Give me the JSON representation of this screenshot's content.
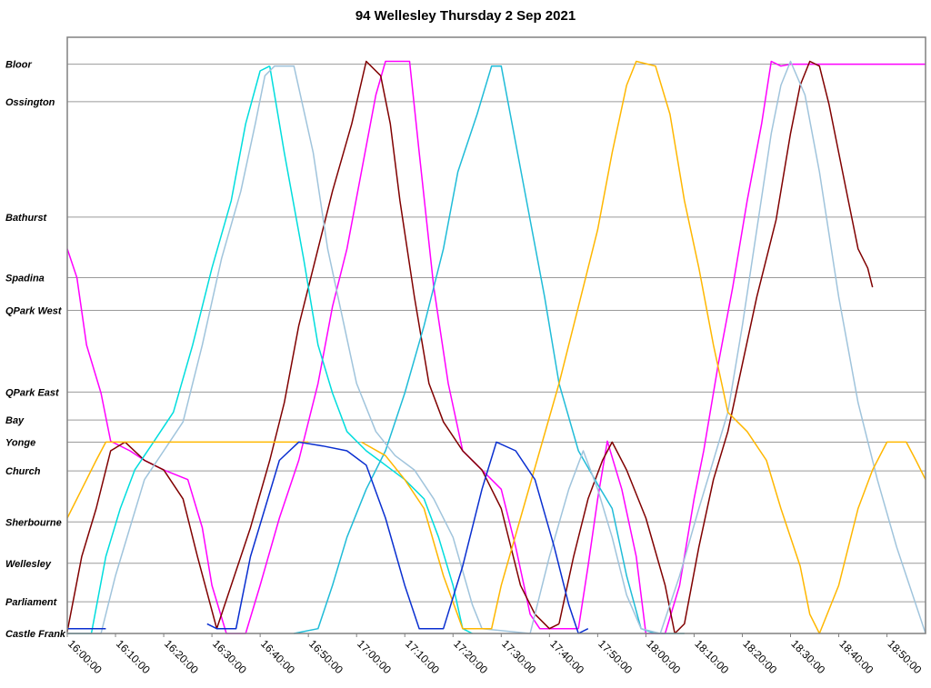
{
  "chart_data": {
    "type": "line",
    "title": "94 Wellesley Thursday 2 Sep 2021",
    "xlabel": "",
    "ylabel": "",
    "x_axis": {
      "type": "time",
      "range": [
        "16:00:00",
        "18:58:00"
      ],
      "ticks": [
        "16:00:00",
        "16:10:00",
        "16:20:00",
        "16:30:00",
        "16:40:00",
        "16:50:00",
        "17:00:00",
        "17:10:00",
        "17:20:00",
        "17:30:00",
        "17:40:00",
        "17:50:00",
        "18:00:00",
        "18:10:00",
        "18:20:00",
        "18:30:00",
        "18:40:00",
        "18:50:00"
      ]
    },
    "y_axis": {
      "type": "distance_km_from_castle_frank",
      "range": [
        0,
        6.2
      ],
      "stops": [
        {
          "name": "Castle Frank",
          "pos": 0.0
        },
        {
          "name": "Parliament",
          "pos": 0.33
        },
        {
          "name": "Wellesley",
          "pos": 0.73
        },
        {
          "name": "Sherbourne",
          "pos": 1.16
        },
        {
          "name": "Church",
          "pos": 1.69
        },
        {
          "name": "Yonge",
          "pos": 1.99
        },
        {
          "name": "Bay",
          "pos": 2.22
        },
        {
          "name": "QPark East",
          "pos": 2.51
        },
        {
          "name": "QPark West",
          "pos": 3.36
        },
        {
          "name": "Spadina",
          "pos": 3.7
        },
        {
          "name": "Bathurst",
          "pos": 4.33
        },
        {
          "name": "Ossington",
          "pos": 5.53
        },
        {
          "name": "Bloor",
          "pos": 5.92
        }
      ]
    },
    "grid": true,
    "legend": "none",
    "series": [
      {
        "color": "#ff00ff",
        "points": [
          [
            0,
            4.0
          ],
          [
            2,
            3.7
          ],
          [
            4,
            3.0
          ],
          [
            7,
            2.5
          ],
          [
            9,
            2.0
          ],
          [
            13,
            1.9
          ],
          [
            16,
            1.8
          ],
          [
            20,
            1.7
          ],
          [
            25,
            1.6
          ],
          [
            28,
            1.1
          ],
          [
            30,
            0.5
          ],
          [
            33,
            0.0
          ],
          [
            37,
            0.0
          ]
        ]
      },
      {
        "color": "#ff00ff",
        "points": [
          [
            37,
            0.0
          ],
          [
            40,
            0.5
          ],
          [
            44,
            1.2
          ],
          [
            48,
            1.8
          ],
          [
            52,
            2.6
          ],
          [
            55,
            3.4
          ],
          [
            58,
            4.0
          ],
          [
            61,
            4.8
          ],
          [
            64,
            5.6
          ],
          [
            66,
            5.95
          ],
          [
            71,
            5.95
          ],
          [
            73,
            5.0
          ],
          [
            76,
            3.6
          ],
          [
            79,
            2.6
          ],
          [
            82,
            1.9
          ],
          [
            86,
            1.7
          ],
          [
            90,
            1.5
          ],
          [
            93,
            0.9
          ],
          [
            96,
            0.2
          ],
          [
            98,
            0.05
          ],
          [
            106,
            0.05
          ]
        ]
      },
      {
        "color": "#ff00ff",
        "points": [
          [
            106,
            0.05
          ],
          [
            108,
            0.7
          ],
          [
            110,
            1.4
          ],
          [
            112,
            2.0
          ],
          [
            115,
            1.5
          ],
          [
            118,
            0.8
          ],
          [
            120,
            0.0
          ],
          [
            124,
            0.0
          ],
          [
            127,
            0.5
          ],
          [
            130,
            1.4
          ],
          [
            132,
            1.9
          ],
          [
            135,
            2.8
          ],
          [
            138,
            3.6
          ],
          [
            141,
            4.5
          ],
          [
            144,
            5.3
          ],
          [
            146,
            5.95
          ],
          [
            148,
            5.9
          ],
          [
            150,
            5.92
          ],
          [
            178,
            5.92
          ]
        ]
      },
      {
        "color": "#800000",
        "points": [
          [
            0,
            0.02
          ],
          [
            3,
            0.8
          ],
          [
            6,
            1.3
          ],
          [
            9,
            1.9
          ],
          [
            12,
            1.99
          ],
          [
            16,
            1.8
          ],
          [
            20,
            1.7
          ],
          [
            24,
            1.4
          ],
          [
            27,
            0.8
          ],
          [
            31,
            0.05
          ],
          [
            34,
            0.5
          ],
          [
            38,
            1.1
          ],
          [
            42,
            1.8
          ],
          [
            45,
            2.4
          ],
          [
            48,
            3.2
          ],
          [
            51,
            3.8
          ],
          [
            55,
            4.6
          ],
          [
            59,
            5.3
          ],
          [
            62,
            5.95
          ],
          [
            65,
            5.8
          ],
          [
            67,
            5.3
          ],
          [
            69,
            4.5
          ],
          [
            72,
            3.5
          ],
          [
            75,
            2.6
          ],
          [
            78,
            2.2
          ],
          [
            82,
            1.9
          ],
          [
            86,
            1.7
          ],
          [
            90,
            1.3
          ],
          [
            94,
            0.5
          ],
          [
            97,
            0.2
          ],
          [
            100,
            0.05
          ],
          [
            102,
            0.1
          ]
        ]
      },
      {
        "color": "#800000",
        "points": [
          [
            102,
            0.1
          ],
          [
            105,
            0.8
          ],
          [
            108,
            1.4
          ],
          [
            111,
            1.8
          ],
          [
            113,
            1.99
          ],
          [
            116,
            1.7
          ],
          [
            120,
            1.2
          ],
          [
            124,
            0.5
          ],
          [
            126,
            0.0
          ],
          [
            128,
            0.1
          ],
          [
            131,
            0.9
          ],
          [
            134,
            1.6
          ],
          [
            137,
            2.1
          ],
          [
            140,
            2.8
          ],
          [
            143,
            3.5
          ],
          [
            147,
            4.3
          ],
          [
            150,
            5.2
          ],
          [
            152,
            5.7
          ],
          [
            154,
            5.95
          ],
          [
            156,
            5.9
          ],
          [
            158,
            5.5
          ],
          [
            160,
            5.0
          ],
          [
            162,
            4.5
          ],
          [
            164,
            4.0
          ],
          [
            166,
            3.8
          ],
          [
            167,
            3.6
          ]
        ]
      },
      {
        "color": "#00dddd",
        "points": [
          [
            0,
            0.0
          ],
          [
            5,
            0.0
          ],
          [
            8,
            0.8
          ],
          [
            11,
            1.3
          ],
          [
            14,
            1.7
          ],
          [
            18,
            2.0
          ],
          [
            22,
            2.3
          ],
          [
            26,
            3.0
          ],
          [
            30,
            3.8
          ],
          [
            34,
            4.5
          ],
          [
            37,
            5.3
          ],
          [
            40,
            5.85
          ],
          [
            42,
            5.9
          ]
        ]
      },
      {
        "color": "#00dddd",
        "points": [
          [
            42,
            5.9
          ],
          [
            45,
            5.0
          ],
          [
            49,
            3.9
          ],
          [
            52,
            3.0
          ],
          [
            55,
            2.5
          ],
          [
            58,
            2.1
          ],
          [
            62,
            1.9
          ],
          [
            66,
            1.75
          ],
          [
            70,
            1.6
          ],
          [
            74,
            1.4
          ],
          [
            77,
            1.0
          ],
          [
            80,
            0.5
          ],
          [
            82,
            0.05
          ],
          [
            84,
            0.0
          ]
        ]
      },
      {
        "color": "#20bcd8",
        "points": [
          [
            47,
            0.0
          ],
          [
            52,
            0.05
          ],
          [
            55,
            0.5
          ],
          [
            58,
            1.0
          ],
          [
            62,
            1.5
          ],
          [
            66,
            1.9
          ],
          [
            70,
            2.5
          ],
          [
            74,
            3.2
          ],
          [
            78,
            4.0
          ],
          [
            81,
            4.8
          ],
          [
            85,
            5.4
          ],
          [
            88,
            5.9
          ],
          [
            90,
            5.9
          ],
          [
            93,
            5.1
          ],
          [
            96,
            4.3
          ],
          [
            99,
            3.5
          ],
          [
            102,
            2.6
          ],
          [
            106,
            1.9
          ],
          [
            110,
            1.55
          ],
          [
            113,
            1.3
          ],
          [
            116,
            0.6
          ],
          [
            119,
            0.05
          ],
          [
            122,
            0.0
          ],
          [
            128,
            0.0
          ]
        ]
      },
      {
        "color": "#a0c4dc",
        "points": [
          [
            0,
            0.0
          ],
          [
            7,
            0.0
          ],
          [
            10,
            0.6
          ],
          [
            13,
            1.1
          ],
          [
            16,
            1.6
          ],
          [
            20,
            1.9
          ],
          [
            24,
            2.2
          ],
          [
            28,
            3.0
          ],
          [
            32,
            3.9
          ],
          [
            36,
            4.6
          ],
          [
            39,
            5.3
          ],
          [
            41,
            5.8
          ],
          [
            43,
            5.9
          ],
          [
            47,
            5.9
          ],
          [
            51,
            5.0
          ],
          [
            54,
            4.0
          ],
          [
            57,
            3.3
          ],
          [
            60,
            2.6
          ],
          [
            64,
            2.1
          ],
          [
            68,
            1.85
          ],
          [
            72,
            1.7
          ],
          [
            76,
            1.4
          ],
          [
            80,
            1.0
          ],
          [
            84,
            0.3
          ],
          [
            86,
            0.05
          ],
          [
            96,
            0.0
          ]
        ]
      },
      {
        "color": "#a0c4dc",
        "points": [
          [
            96,
            0.0
          ],
          [
            100,
            0.8
          ],
          [
            104,
            1.5
          ],
          [
            107,
            1.9
          ],
          [
            110,
            1.5
          ],
          [
            113,
            1.0
          ],
          [
            116,
            0.4
          ],
          [
            119,
            0.05
          ],
          [
            123,
            0.0
          ],
          [
            127,
            0.6
          ],
          [
            131,
            1.3
          ],
          [
            134,
            1.8
          ],
          [
            137,
            2.3
          ],
          [
            140,
            3.2
          ],
          [
            143,
            4.2
          ],
          [
            146,
            5.2
          ],
          [
            148,
            5.7
          ],
          [
            150,
            5.95
          ],
          [
            153,
            5.6
          ],
          [
            156,
            4.8
          ],
          [
            160,
            3.5
          ],
          [
            164,
            2.4
          ],
          [
            168,
            1.6
          ],
          [
            172,
            0.9
          ],
          [
            176,
            0.3
          ],
          [
            178,
            0.0
          ]
        ]
      },
      {
        "color": "#ffb700",
        "points": [
          [
            0,
            1.2
          ],
          [
            3,
            1.5
          ],
          [
            6,
            1.8
          ],
          [
            8,
            1.99
          ],
          [
            47,
            1.99
          ],
          [
            50,
            1.99
          ]
        ]
      },
      {
        "color": "#ffb700",
        "points": [
          [
            61,
            1.99
          ],
          [
            66,
            1.85
          ],
          [
            70,
            1.6
          ],
          [
            74,
            1.3
          ],
          [
            78,
            0.6
          ],
          [
            82,
            0.05
          ],
          [
            88,
            0.05
          ],
          [
            90,
            0.5
          ],
          [
            94,
            1.2
          ],
          [
            98,
            1.9
          ],
          [
            102,
            2.6
          ],
          [
            106,
            3.4
          ],
          [
            110,
            4.2
          ],
          [
            113,
            5.0
          ],
          [
            116,
            5.7
          ],
          [
            118,
            5.95
          ],
          [
            122,
            5.9
          ],
          [
            125,
            5.4
          ],
          [
            128,
            4.5
          ],
          [
            131,
            3.8
          ],
          [
            134,
            3.0
          ],
          [
            137,
            2.3
          ],
          [
            141,
            2.1
          ],
          [
            145,
            1.8
          ],
          [
            148,
            1.3
          ],
          [
            152,
            0.7
          ],
          [
            154,
            0.2
          ],
          [
            156,
            0.0
          ],
          [
            160,
            0.5
          ],
          [
            164,
            1.3
          ],
          [
            167,
            1.7
          ],
          [
            170,
            1.99
          ],
          [
            174,
            1.99
          ],
          [
            176,
            1.8
          ],
          [
            178,
            1.6
          ]
        ]
      },
      {
        "color": "#0a2fd0",
        "points": [
          [
            0,
            0.05
          ],
          [
            8,
            0.05
          ]
        ]
      },
      {
        "color": "#0a2fd0",
        "points": [
          [
            29,
            0.1
          ],
          [
            31,
            0.05
          ],
          [
            35,
            0.05
          ],
          [
            38,
            0.8
          ],
          [
            41,
            1.3
          ],
          [
            44,
            1.8
          ],
          [
            48,
            1.99
          ],
          [
            53,
            1.95
          ],
          [
            58,
            1.9
          ],
          [
            62,
            1.75
          ],
          [
            66,
            1.2
          ],
          [
            70,
            0.5
          ],
          [
            73,
            0.05
          ],
          [
            78,
            0.05
          ],
          [
            82,
            0.7
          ],
          [
            86,
            1.5
          ],
          [
            89,
            1.99
          ],
          [
            93,
            1.9
          ],
          [
            97,
            1.6
          ],
          [
            101,
            0.9
          ],
          [
            104,
            0.3
          ],
          [
            106,
            0.0
          ],
          [
            108,
            0.05
          ]
        ]
      }
    ]
  }
}
